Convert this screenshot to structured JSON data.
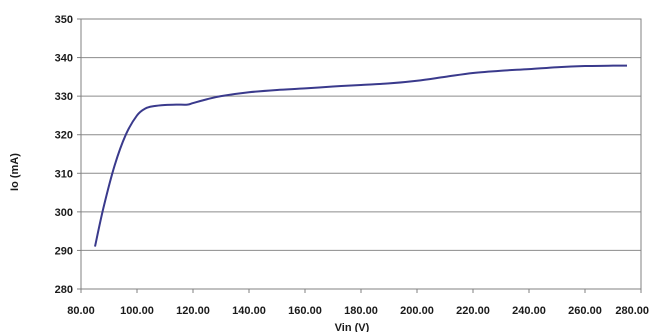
{
  "chart_data": {
    "type": "line",
    "xlabel": "Vin (V)",
    "ylabel": "Io (mA)",
    "xlim": [
      80,
      280
    ],
    "ylim": [
      280,
      350
    ],
    "x_ticks": [
      "80.00",
      "100.00",
      "120.00",
      "140.00",
      "160.00",
      "180.00",
      "200.00",
      "220.00",
      "240.00",
      "260.00",
      "280.00"
    ],
    "y_ticks": [
      "280",
      "290",
      "300",
      "310",
      "320",
      "330",
      "340",
      "350"
    ],
    "grid": "horizontal",
    "line_color": "#3a3a8c",
    "series": [
      {
        "x": [
          85,
          88,
          92,
          96,
          100,
          103,
          106,
          110,
          114,
          118,
          120,
          125,
          130,
          140,
          150,
          160,
          170,
          180,
          190,
          200,
          210,
          220,
          230,
          240,
          250,
          260,
          270,
          275
        ],
        "y": [
          291,
          301,
          312,
          320,
          325,
          326.8,
          327.4,
          327.7,
          327.8,
          327.8,
          328.2,
          329.2,
          330,
          331,
          331.6,
          332,
          332.5,
          332.9,
          333.3,
          334,
          335,
          336,
          336.6,
          337,
          337.5,
          337.8,
          337.9,
          337.9
        ]
      }
    ]
  }
}
